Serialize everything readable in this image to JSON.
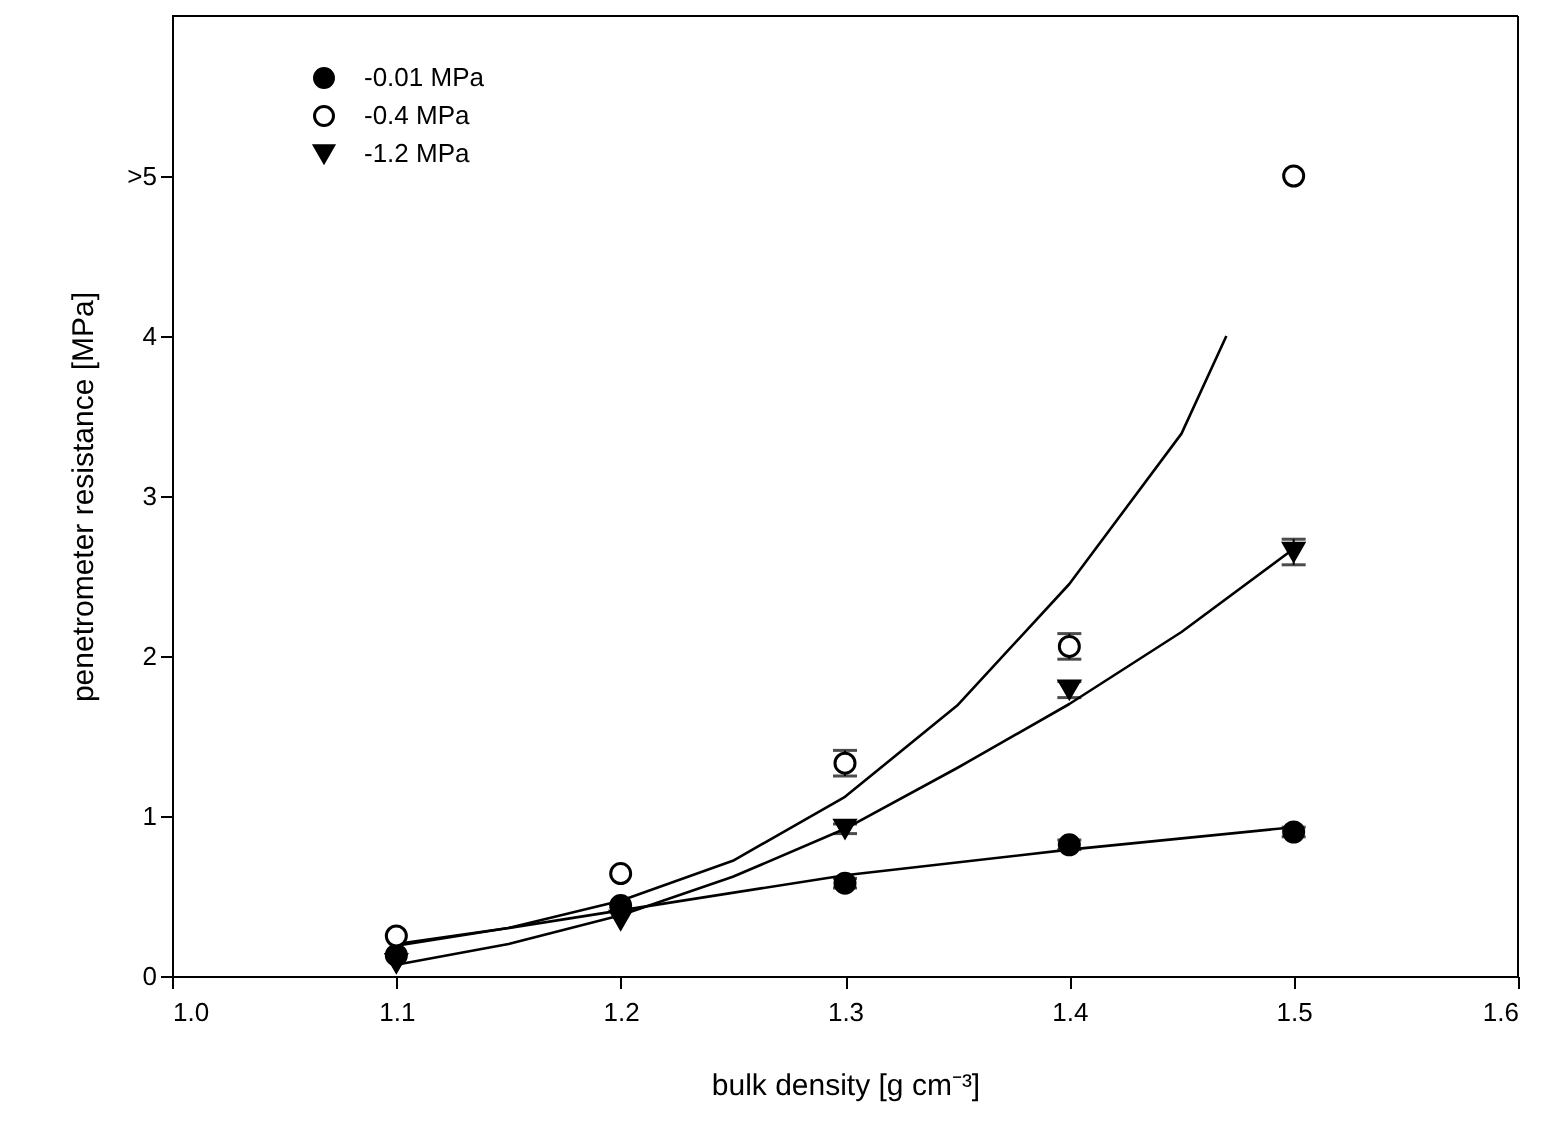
{
  "chart_data": {
    "type": "scatter",
    "xlabel": "bulk density [g cm⁻³]",
    "ylabel": "penetrometer resistance [MPa]",
    "x": [
      1.1,
      1.2,
      1.3,
      1.4,
      1.5
    ],
    "xlim": [
      1.0,
      1.6
    ],
    "xticks": [
      {
        "value": 1.0,
        "label": "1.0"
      },
      1.1,
      1.2,
      1.3,
      1.4,
      1.5,
      1.6
    ],
    "ylim": [
      0,
      6.0
    ],
    "yticks": [
      0,
      1,
      2,
      3,
      4,
      {
        "value": 5,
        "label": ">5"
      }
    ],
    "grid": false,
    "legend": "top left",
    "series": [
      {
        "name": "-0.01 MPa",
        "marker": "circle",
        "color": "#000000",
        "values": [
          0.13,
          0.44,
          0.58,
          0.82,
          0.9
        ],
        "errors": [
          null,
          null,
          0.03,
          0.03,
          0.03
        ]
      },
      {
        "name": "-0.4 MPa",
        "marker": "circle",
        "color": "#ffffff",
        "values": [
          0.25,
          0.64,
          1.33,
          2.06,
          5.0
        ],
        "errors": [
          null,
          null,
          0.08,
          0.08,
          null
        ]
      },
      {
        "name": "-1.2 MPa",
        "marker": "triangle",
        "color": "#000000",
        "values": [
          0.08,
          0.35,
          0.92,
          1.79,
          2.65
        ],
        "errors": [
          null,
          null,
          0.03,
          0.05,
          0.08
        ]
      },
      {
        "type": "line",
        "color": "#000000",
        "x": [
          1.1,
          1.2,
          1.3,
          1.4,
          1.5
        ],
        "values": [
          0.19,
          0.41,
          0.63,
          0.79,
          0.93
        ]
      },
      {
        "type": "line",
        "color": "#000000",
        "x": [
          1.1,
          1.15,
          1.2,
          1.25,
          1.3,
          1.35,
          1.4,
          1.45,
          1.5
        ],
        "values": [
          0.07,
          0.2,
          0.38,
          0.62,
          0.92,
          1.3,
          1.7,
          2.15,
          2.67
        ]
      },
      {
        "type": "line",
        "color": "#000000",
        "x": [
          1.1,
          1.15,
          1.2,
          1.25,
          1.3,
          1.35,
          1.4,
          1.45,
          1.47
        ],
        "values": [
          0.2,
          0.3,
          0.47,
          0.72,
          1.12,
          1.69,
          2.45,
          3.39,
          4.0
        ]
      }
    ]
  }
}
